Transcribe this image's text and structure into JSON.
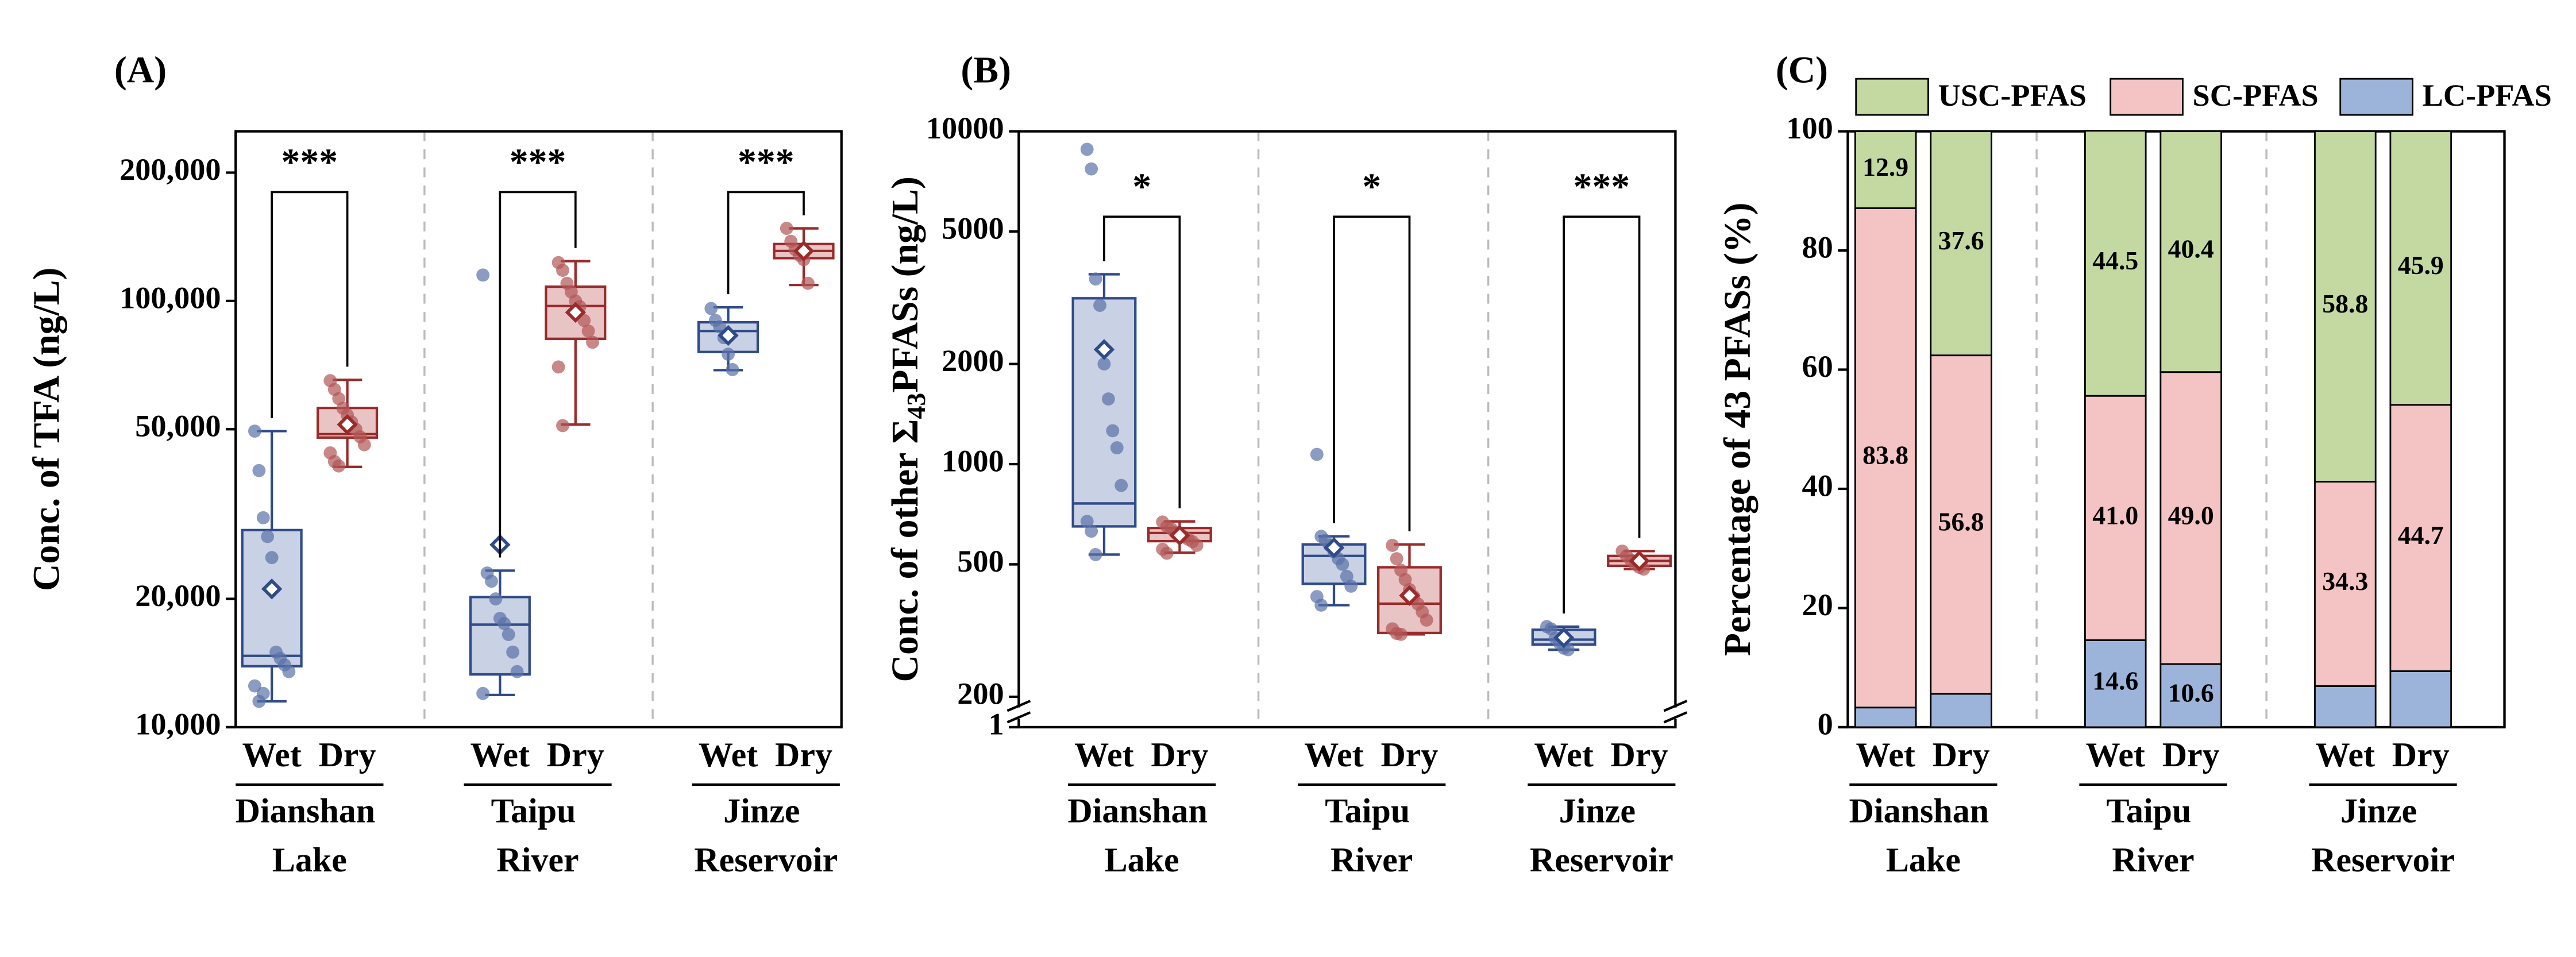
{
  "chart_data": [
    {
      "type": "box",
      "panel_label": "(A)",
      "ylabel": "Conc. of TFA (ng/L)",
      "yscale": "log",
      "ylim": [
        10000,
        250000
      ],
      "yticks": [
        {
          "value": 10000,
          "label": "10,000"
        },
        {
          "value": 20000,
          "label": "20,000"
        },
        {
          "value": 50000,
          "label": "50,000"
        },
        {
          "value": 100000,
          "label": "100,000"
        },
        {
          "value": 200000,
          "label": "200,000"
        }
      ],
      "groups": [
        "Dianshan Lake",
        "Taipu River",
        "Jinze Reservoir"
      ],
      "significance": [
        "***",
        "***",
        "***"
      ],
      "series": [
        {
          "name": "Wet",
          "color": "#2f4b8a",
          "fill": "#c9d1e4",
          "point_color": "#5a72a8",
          "boxes": [
            {
              "q1": 13900,
              "median": 14700,
              "q3": 29000,
              "whislo": 11500,
              "whishi": 49500,
              "mean": 21100,
              "points": [
                49500,
                40000,
                31000,
                28000,
                25000,
                15000,
                14500,
                14000,
                13500,
                12500,
                11500,
                12000
              ]
            },
            {
              "q1": 13300,
              "median": 17400,
              "q3": 20200,
              "whislo": 11900,
              "whishi": 23300,
              "mean": 26800,
              "points": [
                115000,
                23000,
                22000,
                20000,
                18000,
                17500,
                16500,
                15000,
                13500,
                12000
              ]
            },
            {
              "q1": 75900,
              "median": 85000,
              "q3": 89100,
              "whislo": 68800,
              "whishi": 96600,
              "mean": 83000,
              "points": [
                96000,
                90000,
                87000,
                82000,
                75000,
                69000
              ]
            }
          ]
        },
        {
          "name": "Dry",
          "color": "#9b2a2a",
          "fill": "#e8c4c4",
          "point_color": "#b25555",
          "boxes": [
            {
              "q1": 47800,
              "median": 48700,
              "q3": 56100,
              "whislo": 40800,
              "whishi": 65300,
              "mean": 51300,
              "points": [
                65000,
                62000,
                59000,
                56000,
                54000,
                52000,
                50000,
                48000,
                46000,
                44000,
                42000,
                41000
              ]
            },
            {
              "q1": 81500,
              "median": 97300,
              "q3": 108000,
              "whislo": 51300,
              "whishi": 124000,
              "mean": 94000,
              "points": [
                123000,
                118000,
                110000,
                105000,
                100000,
                97000,
                90000,
                85000,
                80000,
                70000,
                51000
              ]
            },
            {
              "q1": 126000,
              "median": 131000,
              "q3": 136000,
              "whislo": 109000,
              "whishi": 148000,
              "mean": 131000,
              "points": [
                148000,
                138000,
                132000,
                128000,
                125000,
                110000
              ]
            }
          ]
        }
      ]
    },
    {
      "type": "box",
      "panel_label": "(B)",
      "ylabel": "Conc. of other Σ43PFASs (ng/L)",
      "yscale": "log",
      "ylim": [
        1,
        10000
      ],
      "y_break": [
        1,
        190
      ],
      "yticks": [
        1,
        200,
        500,
        1000,
        2000,
        5000,
        10000
      ],
      "groups": [
        "Dianshan Lake",
        "Taipu River",
        "Jinze Reservoir"
      ],
      "significance": [
        "*",
        "*",
        "***"
      ],
      "series": [
        {
          "name": "Wet",
          "color": "#2f4b8a",
          "fill": "#c9d1e4",
          "point_color": "#5a72a8",
          "boxes": [
            {
              "q1": 650,
              "median": 762,
              "q3": 3150,
              "whislo": 535,
              "whishi": 3720,
              "mean": 2210,
              "points": [
                8830,
                7710,
                3600,
                3000,
                2000,
                1570,
                1260,
                1120,
                863,
                673,
                629,
                535
              ]
            },
            {
              "q1": 437,
              "median": 530,
              "q3": 574,
              "whislo": 377,
              "whishi": 607,
              "mean": 561,
              "points": [
                1070,
                607,
                590,
                570,
                545,
                520,
                500,
                460,
                430,
                400,
                377
              ]
            },
            {
              "q1": 287,
              "median": 297,
              "q3": 318,
              "whislo": 277,
              "whishi": 325,
              "mean": 301,
              "points": [
                325,
                320,
                300,
                290,
                280,
                277
              ]
            }
          ]
        },
        {
          "name": "Dry",
          "color": "#9b2a2a",
          "fill": "#e8c4c4",
          "point_color": "#b25555",
          "boxes": [
            {
              "q1": 587,
              "median": 621,
              "q3": 643,
              "whislo": 542,
              "whishi": 673,
              "mean": 611,
              "points": [
                670,
                650,
                640,
                625,
                615,
                605,
                595,
                585,
                570,
                555,
                540
              ]
            },
            {
              "q1": 311,
              "median": 381,
              "q3": 490,
              "whislo": 308,
              "whishi": 574,
              "mean": 403,
              "points": [
                570,
                520,
                480,
                450,
                420,
                400,
                380,
                360,
                340,
                320,
                310,
                308
              ]
            },
            {
              "q1": 495,
              "median": 512,
              "q3": 530,
              "whislo": 484,
              "whishi": 548,
              "mean": 512,
              "points": [
                548,
                530,
                515,
                500,
                490,
                484
              ]
            }
          ]
        }
      ]
    },
    {
      "type": "stacked_bar",
      "panel_label": "(C)",
      "ylabel": "Percentage of 43 PFASs (%)",
      "ylim": [
        0,
        100
      ],
      "yticks": [
        0,
        20,
        40,
        60,
        80,
        100
      ],
      "groups": [
        "Dianshan Lake",
        "Taipu River",
        "Jinze Reservoir"
      ],
      "subcategories": [
        "Wet",
        "Dry"
      ],
      "series": [
        {
          "name": "USC-PFAS",
          "color": "#c3d9a1",
          "values": [
            12.9,
            37.6,
            44.5,
            40.4,
            58.8,
            45.9
          ],
          "value_labels": [
            "12.9",
            "37.6",
            "44.5",
            "40.4",
            "58.8",
            "45.9"
          ]
        },
        {
          "name": "SC-PFAS",
          "color": "#f4c3c3",
          "values": [
            83.8,
            56.8,
            41,
            49,
            34.3,
            44.7
          ],
          "value_labels": [
            "83.8",
            "56.8",
            "41.0",
            "49.0",
            "34.3",
            "44.7"
          ]
        },
        {
          "name": "LC-PFAS",
          "color": "#9db4da",
          "values": [
            3.3,
            5.6,
            14.6,
            10.6,
            6.9,
            9.4
          ],
          "value_labels": [
            null,
            null,
            "14.6",
            "10.6",
            null,
            null
          ]
        }
      ]
    }
  ]
}
